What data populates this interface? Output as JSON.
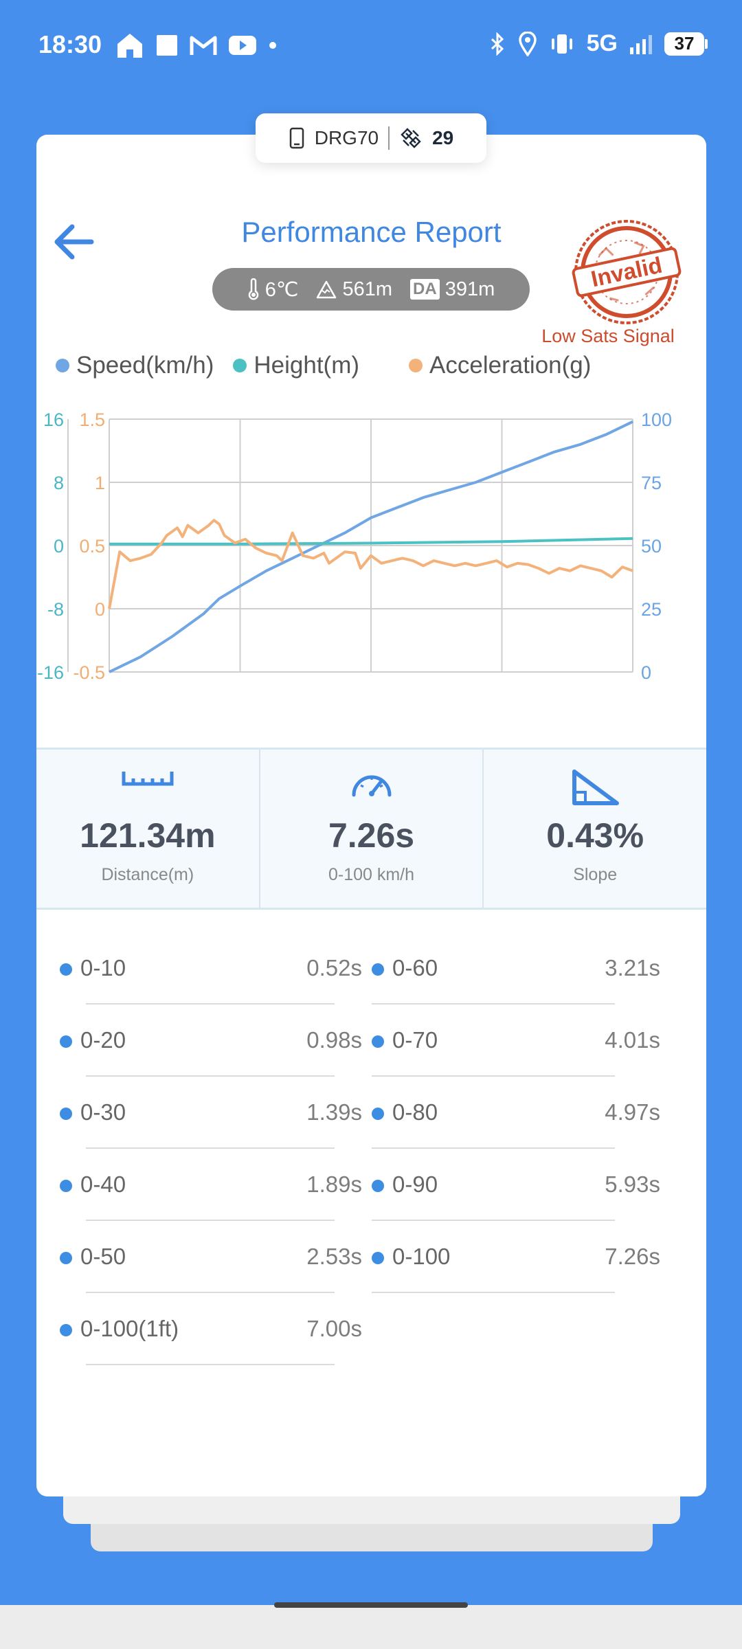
{
  "status_bar": {
    "time": "18:30",
    "left_icons": [
      "home-icon",
      "square-icon",
      "gmail-icon",
      "youtube-icon",
      "dot-icon"
    ],
    "network": "5G",
    "battery": "37"
  },
  "device": {
    "name": "DRG70",
    "satellites": "29"
  },
  "header": {
    "title": "Performance Report",
    "temperature": "6℃",
    "altitude": "561m",
    "da_label": "DA",
    "density_altitude": "391m",
    "stamp_text": "Invalid",
    "stamp_note": "Low Sats Signal"
  },
  "legend": [
    {
      "label": "Speed(km/h)",
      "color": "#6fa6e3"
    },
    {
      "label": "Height(m)",
      "color": "#4bc1c3"
    },
    {
      "label": "Acceleration(g)",
      "color": "#f3b27a"
    }
  ],
  "chart_data": {
    "type": "line",
    "x": [
      0,
      0.25,
      0.5,
      0.75,
      1
    ],
    "axes": {
      "height_left": {
        "ticks": [
          "16",
          "8",
          "0",
          "-8",
          "-16"
        ],
        "range": [
          -16,
          16
        ],
        "color": "#4bb6c4"
      },
      "accel_left": {
        "ticks": [
          "1.5",
          "1",
          "0.5",
          "0",
          "-0.5"
        ],
        "range": [
          -0.5,
          1.5
        ],
        "color": "#f0ae74"
      },
      "speed_right": {
        "ticks": [
          "100",
          "75",
          "50",
          "25",
          "0"
        ],
        "range": [
          0,
          100
        ],
        "color": "#6aa4e3"
      }
    },
    "grid": true,
    "series": [
      {
        "name": "Speed(km/h)",
        "color": "#6fa6e3",
        "axis": "speed_right",
        "points": [
          [
            0,
            0
          ],
          [
            0.06,
            6
          ],
          [
            0.12,
            14
          ],
          [
            0.18,
            23
          ],
          [
            0.21,
            29
          ],
          [
            0.25,
            34
          ],
          [
            0.3,
            40
          ],
          [
            0.35,
            45
          ],
          [
            0.4,
            50
          ],
          [
            0.45,
            55
          ],
          [
            0.5,
            61
          ],
          [
            0.55,
            65
          ],
          [
            0.6,
            69
          ],
          [
            0.65,
            72
          ],
          [
            0.7,
            75
          ],
          [
            0.75,
            79
          ],
          [
            0.8,
            83
          ],
          [
            0.85,
            87
          ],
          [
            0.9,
            90
          ],
          [
            0.95,
            94
          ],
          [
            1,
            99
          ]
        ]
      },
      {
        "name": "Height(m)",
        "color": "#4bc1c3",
        "axis": "height_left",
        "points": [
          [
            0,
            0.2
          ],
          [
            0.25,
            0.2
          ],
          [
            0.5,
            0.3
          ],
          [
            0.75,
            0.5
          ],
          [
            1,
            0.9
          ]
        ]
      },
      {
        "name": "Acceleration(g)",
        "color": "#f3b27a",
        "axis": "accel_left",
        "points": [
          [
            0,
            0
          ],
          [
            0.02,
            0.45
          ],
          [
            0.04,
            0.38
          ],
          [
            0.06,
            0.4
          ],
          [
            0.08,
            0.43
          ],
          [
            0.1,
            0.52
          ],
          [
            0.11,
            0.58
          ],
          [
            0.13,
            0.64
          ],
          [
            0.14,
            0.57
          ],
          [
            0.15,
            0.66
          ],
          [
            0.17,
            0.6
          ],
          [
            0.19,
            0.66
          ],
          [
            0.2,
            0.7
          ],
          [
            0.21,
            0.67
          ],
          [
            0.22,
            0.58
          ],
          [
            0.24,
            0.52
          ],
          [
            0.26,
            0.55
          ],
          [
            0.28,
            0.48
          ],
          [
            0.3,
            0.44
          ],
          [
            0.32,
            0.42
          ],
          [
            0.33,
            0.38
          ],
          [
            0.35,
            0.6
          ],
          [
            0.37,
            0.42
          ],
          [
            0.39,
            0.4
          ],
          [
            0.41,
            0.44
          ],
          [
            0.42,
            0.36
          ],
          [
            0.44,
            0.42
          ],
          [
            0.45,
            0.45
          ],
          [
            0.47,
            0.44
          ],
          [
            0.48,
            0.32
          ],
          [
            0.5,
            0.42
          ],
          [
            0.52,
            0.36
          ],
          [
            0.54,
            0.38
          ],
          [
            0.56,
            0.4
          ],
          [
            0.58,
            0.38
          ],
          [
            0.6,
            0.34
          ],
          [
            0.62,
            0.38
          ],
          [
            0.64,
            0.36
          ],
          [
            0.66,
            0.34
          ],
          [
            0.68,
            0.36
          ],
          [
            0.7,
            0.34
          ],
          [
            0.72,
            0.36
          ],
          [
            0.74,
            0.38
          ],
          [
            0.76,
            0.33
          ],
          [
            0.78,
            0.36
          ],
          [
            0.8,
            0.35
          ],
          [
            0.82,
            0.32
          ],
          [
            0.84,
            0.28
          ],
          [
            0.86,
            0.32
          ],
          [
            0.88,
            0.3
          ],
          [
            0.9,
            0.34
          ],
          [
            0.92,
            0.32
          ],
          [
            0.94,
            0.3
          ],
          [
            0.96,
            0.25
          ],
          [
            0.98,
            0.33
          ],
          [
            1,
            0.3
          ]
        ]
      }
    ]
  },
  "stats": [
    {
      "icon": "ruler-icon",
      "value": "121.34m",
      "label": "Distance(m)"
    },
    {
      "icon": "speedometer-icon",
      "value": "7.26s",
      "label": "0-100 km/h"
    },
    {
      "icon": "slope-icon",
      "value": "0.43%",
      "label": "Slope"
    }
  ],
  "splits": [
    {
      "label": "0-10",
      "time": "0.52s"
    },
    {
      "label": "0-60",
      "time": "3.21s"
    },
    {
      "label": "0-20",
      "time": "0.98s"
    },
    {
      "label": "0-70",
      "time": "4.01s"
    },
    {
      "label": "0-30",
      "time": "1.39s"
    },
    {
      "label": "0-80",
      "time": "4.97s"
    },
    {
      "label": "0-40",
      "time": "1.89s"
    },
    {
      "label": "0-90",
      "time": "5.93s"
    },
    {
      "label": "0-50",
      "time": "2.53s"
    },
    {
      "label": "0-100",
      "time": "7.26s"
    },
    {
      "label": "0-100(1ft)",
      "time": "7.00s"
    }
  ]
}
